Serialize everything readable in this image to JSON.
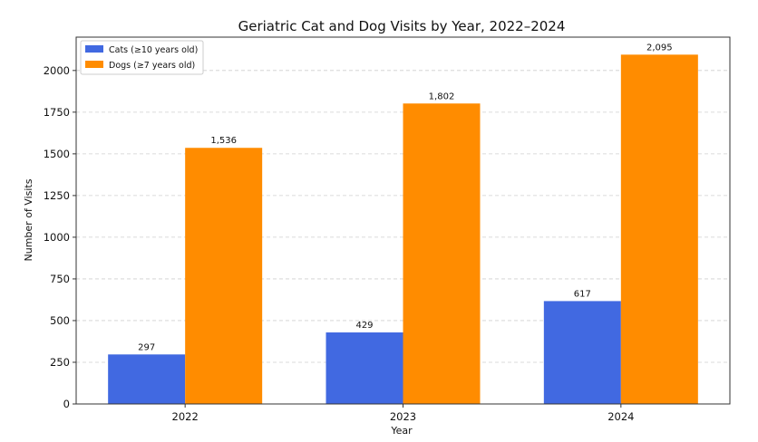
{
  "chart_data": {
    "type": "bar",
    "title": "Geriatric Cat and Dog Visits by Year, 2022–2024",
    "xlabel": "Year",
    "ylabel": "Number of Visits",
    "categories": [
      "2022",
      "2023",
      "2024"
    ],
    "ylim": [
      0,
      2200
    ],
    "yticks": [
      0,
      250,
      500,
      750,
      1000,
      1250,
      1500,
      1750,
      2000
    ],
    "grid": "horizontal dashed",
    "legend_position": "top-left",
    "series": [
      {
        "name": "Cats (≥10 years old)",
        "values": [
          297,
          429,
          617
        ],
        "labels": [
          "297",
          "429",
          "617"
        ],
        "color": "#4169E1"
      },
      {
        "name": "Dogs (≥7 years old)",
        "values": [
          1536,
          1802,
          2095
        ],
        "labels": [
          "1,536",
          "1,802",
          "2,095"
        ],
        "color": "#FF8C00"
      }
    ]
  }
}
